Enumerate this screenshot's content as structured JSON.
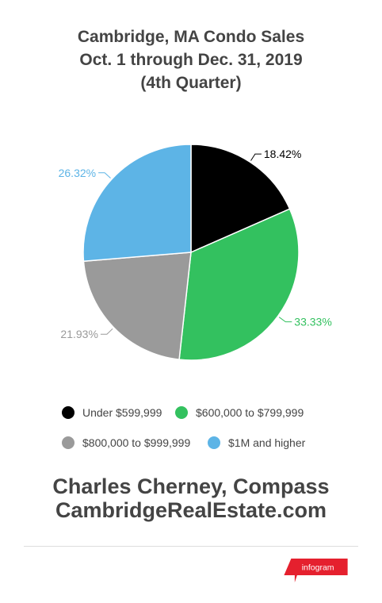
{
  "title": {
    "line1": "Cambridge, MA Condo Sales",
    "line2": "Oct. 1 through Dec. 31, 2019",
    "line3": "(4th Quarter)"
  },
  "chart_data": {
    "type": "pie",
    "slices": [
      {
        "label": "Under $599,999",
        "value": 18.42,
        "display": "18.42%",
        "color": "#000000"
      },
      {
        "label": "$600,000 to $799,999",
        "value": 33.33,
        "display": "33.33%",
        "color": "#33c15f"
      },
      {
        "label": "$800,000 to $999,999",
        "value": 21.93,
        "display": "21.93%",
        "color": "#9a9a9a"
      },
      {
        "label": "$1M and higher",
        "value": 26.32,
        "display": "26.32%",
        "color": "#5db4e6"
      }
    ],
    "legend_position": "bottom"
  },
  "credits": {
    "line1": "Charles Cherney, Compass",
    "line2": "CambridgeRealEstate.com"
  },
  "brand": {
    "label": "infogram",
    "color": "#e5202e"
  }
}
